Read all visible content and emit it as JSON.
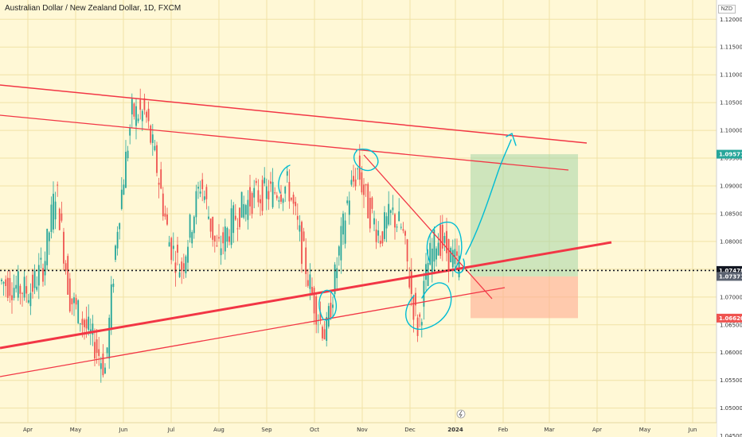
{
  "header": {
    "title": "Australian Dollar / New Zealand Dollar, 1D, FXCM",
    "currency": "NZD"
  },
  "chart_data": {
    "type": "candlestick",
    "ylim": [
      1.045,
      1.125
    ],
    "y_ticks": [
      "1.12000",
      "1.11500",
      "1.11000",
      "1.10500",
      "1.10000",
      "1.09500",
      "1.09000",
      "1.08500",
      "1.08000",
      "1.07500",
      "1.07000",
      "1.06500",
      "1.06000",
      "1.05500",
      "1.05000",
      "1.04500"
    ],
    "x_ticks": [
      "Apr",
      "May",
      "Jun",
      "Jul",
      "Aug",
      "Sep",
      "Oct",
      "Nov",
      "Dec",
      "2024",
      "Feb",
      "Mar",
      "Apr",
      "May",
      "Jun"
    ],
    "price_labels": [
      {
        "value": 1.09571,
        "text": "1.09571",
        "color": "#26a69a"
      },
      {
        "value": 1.07478,
        "text": "1.07478",
        "color": "#131722"
      },
      {
        "value": 1.07371,
        "text": "1.07371",
        "color": "#5b6270"
      },
      {
        "value": 1.0662,
        "text": "1.06620",
        "color": "#ef5350"
      }
    ],
    "current_price": 1.07478,
    "position": {
      "entry": 1.07371,
      "target": 1.09571,
      "stop": 1.0662
    },
    "grid": true,
    "colors": {
      "up": "#26a69a",
      "down": "#ef5350",
      "trendline": "#f23645",
      "annotation": "#00bcd4"
    }
  }
}
